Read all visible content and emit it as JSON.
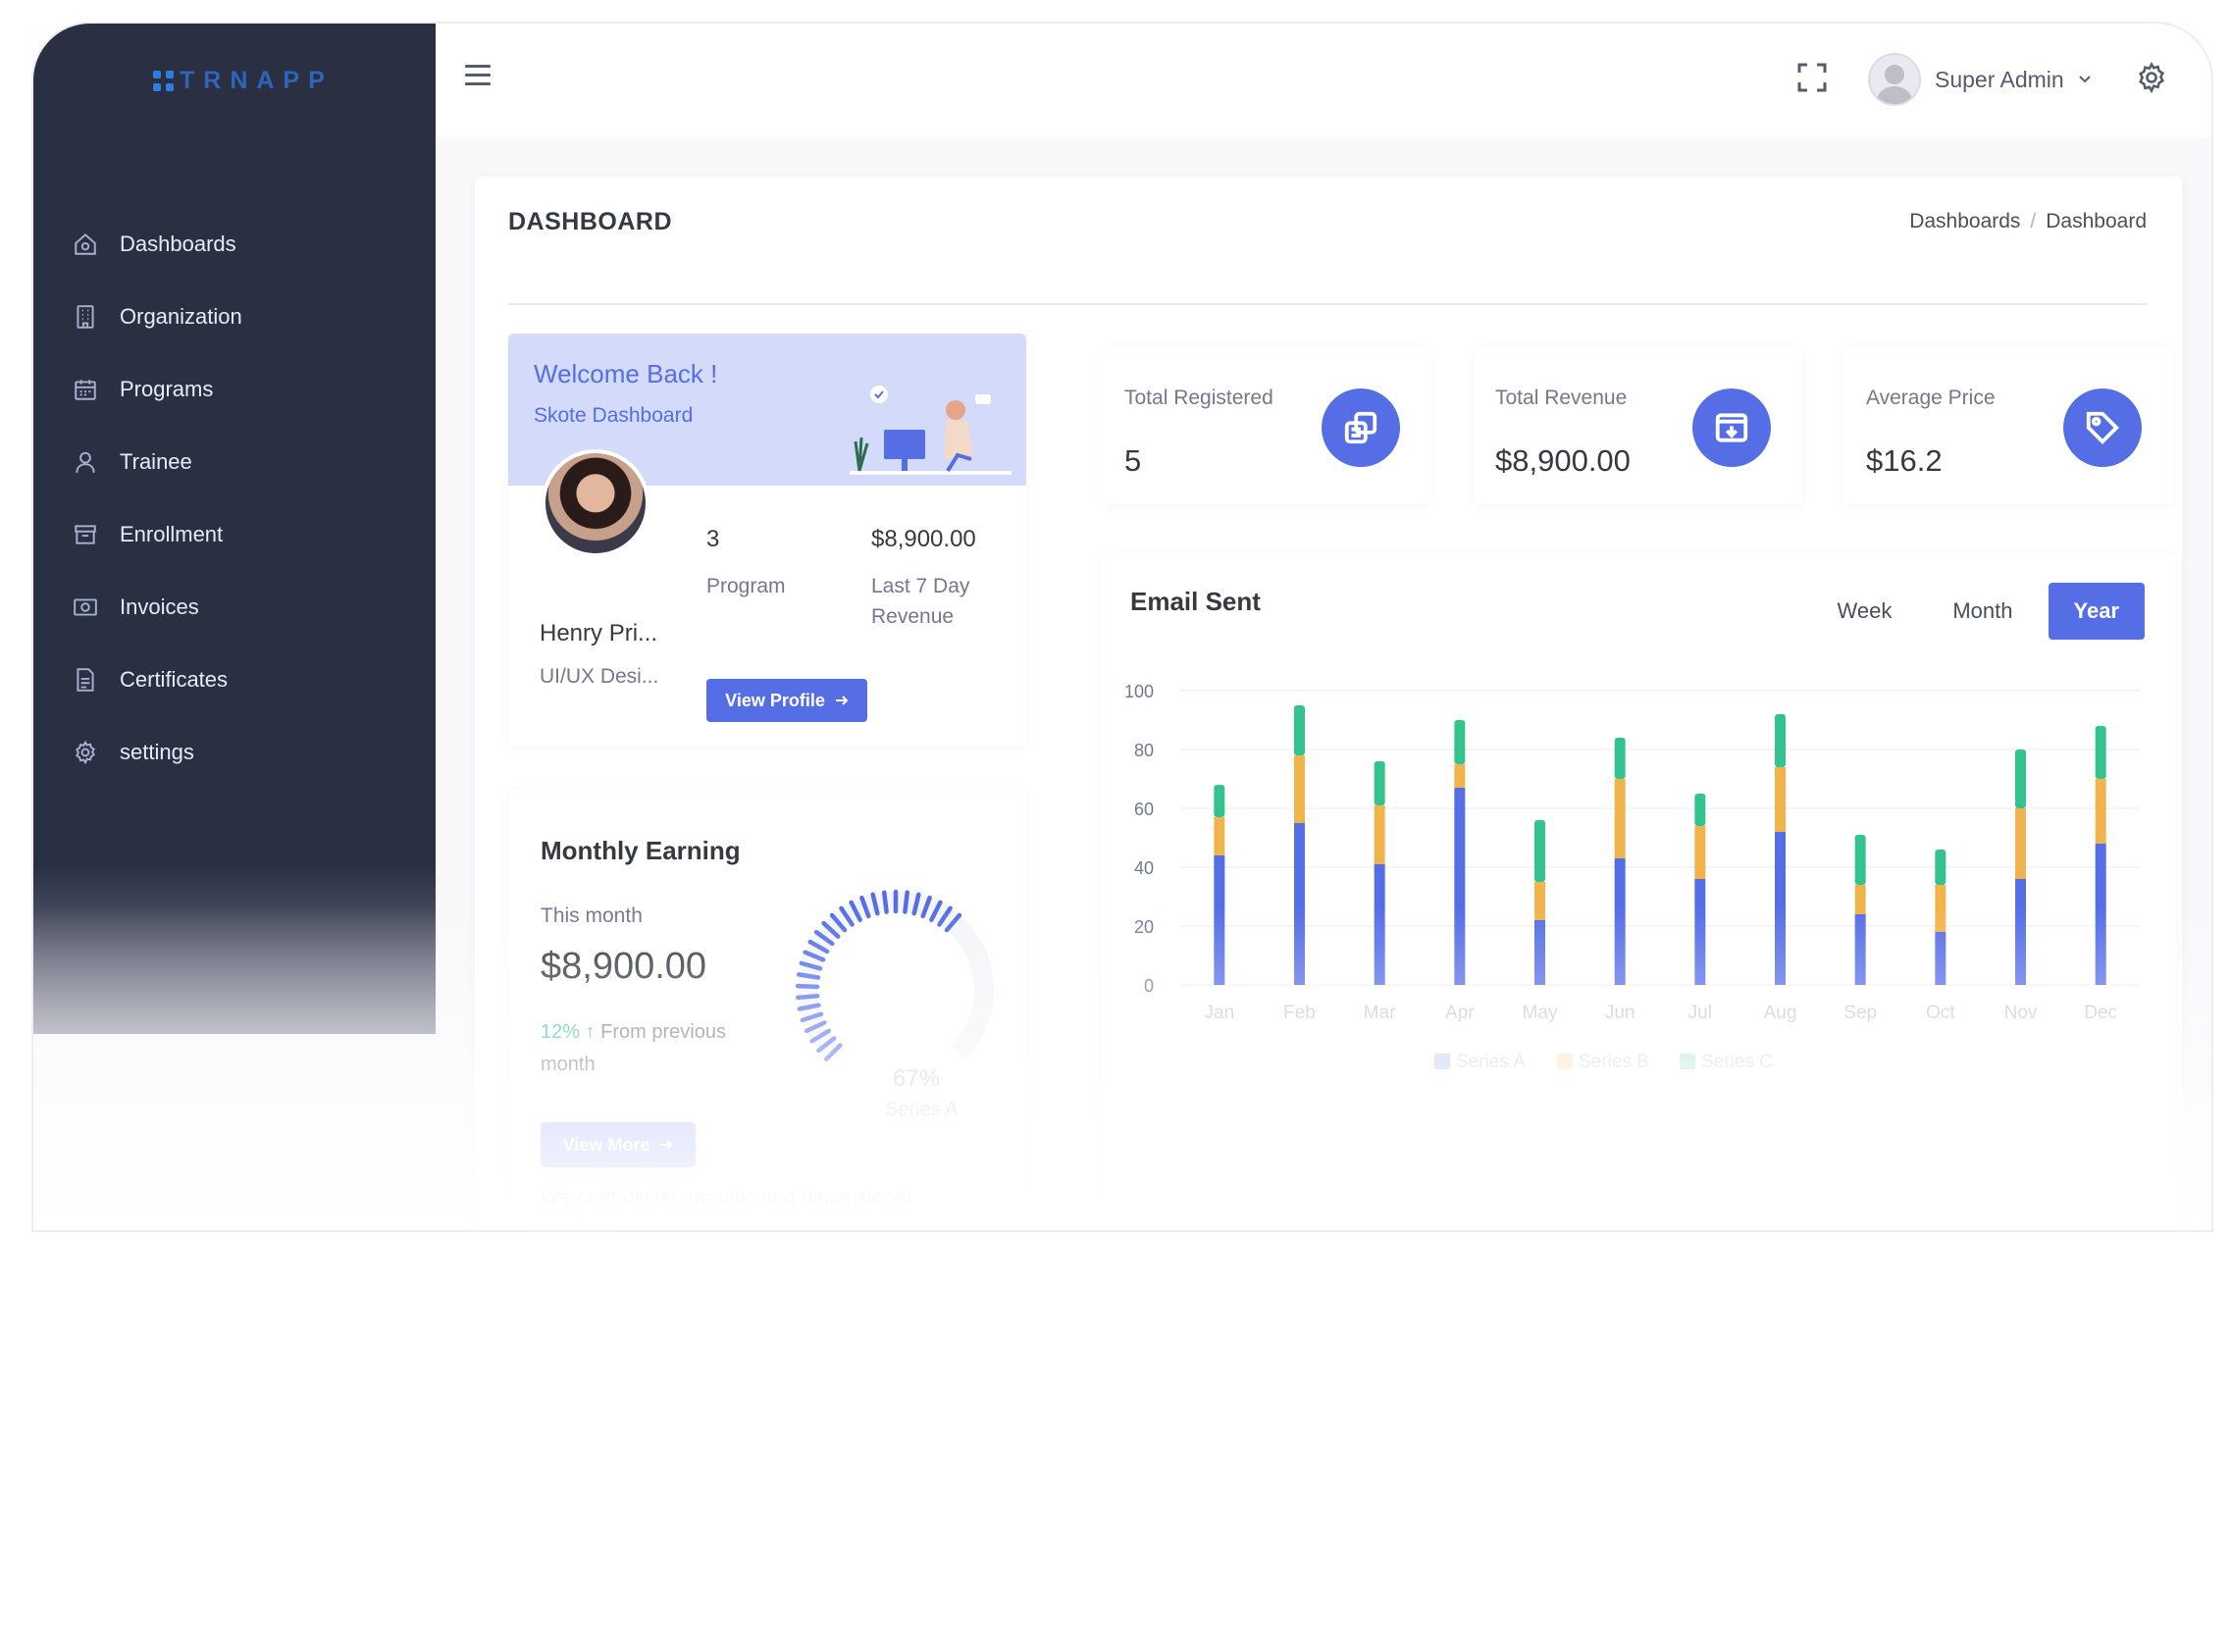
{
  "logo": {
    "text": "TRNAPP"
  },
  "sidebar": {
    "items": [
      {
        "label": "Dashboards",
        "icon": "home-icon"
      },
      {
        "label": "Organization",
        "icon": "building-icon"
      },
      {
        "label": "Programs",
        "icon": "calendar-icon"
      },
      {
        "label": "Trainee",
        "icon": "user-icon"
      },
      {
        "label": "Enrollment",
        "icon": "archive-icon"
      },
      {
        "label": "Invoices",
        "icon": "receipt-icon"
      },
      {
        "label": "Certificates",
        "icon": "document-icon"
      },
      {
        "label": "settings",
        "icon": "gear-icon"
      }
    ]
  },
  "topbar": {
    "user_name": "Super Admin"
  },
  "page": {
    "title": "DASHBOARD",
    "breadcrumb": [
      "Dashboards",
      "/",
      "Dashboard"
    ]
  },
  "welcome": {
    "title": "Welcome Back !",
    "subtitle": "Skote Dashboard",
    "name": "Henry Pri...",
    "role": "UI/UX Desi...",
    "programs_value": "3",
    "programs_label": "Program",
    "revenue_value": "$8,900.00",
    "revenue_label": "Last 7 Day Revenue",
    "button": "View Profile"
  },
  "stats": [
    {
      "label": "Total Registered",
      "value": "5",
      "icon": "copy-icon"
    },
    {
      "label": "Total Revenue",
      "value": "$8,900.00",
      "icon": "archive-download-icon"
    },
    {
      "label": "Average Price",
      "value": "$16.2",
      "icon": "price-tag-icon"
    }
  ],
  "monthly": {
    "title": "Monthly Earning",
    "this_month": "This month",
    "value": "$8,900.00",
    "pct": "12%",
    "pct_text": "From previous month",
    "button": "View More",
    "gauge_value": 67,
    "gauge_label": "67%",
    "gauge_series": "Series A",
    "description": "We craft digital, graphic and dimensional thinking."
  },
  "email_chart": {
    "title": "Email Sent",
    "tabs": [
      "Week",
      "Month",
      "Year"
    ],
    "active_tab": "Year"
  },
  "colors": {
    "primary": "#556ee6",
    "series_a": "#556ee6",
    "series_b": "#f1b44c",
    "series_c": "#34c38f",
    "sidebar": "#2a3042"
  },
  "chart_data": {
    "type": "bar",
    "stacked": true,
    "categories": [
      "Jan",
      "Feb",
      "Mar",
      "Apr",
      "May",
      "Jun",
      "Jul",
      "Aug",
      "Sep",
      "Oct",
      "Nov",
      "Dec"
    ],
    "series": [
      {
        "name": "Series A",
        "values": [
          44,
          55,
          41,
          67,
          22,
          43,
          36,
          52,
          24,
          18,
          36,
          48
        ]
      },
      {
        "name": "Series B",
        "values": [
          13,
          23,
          20,
          8,
          13,
          27,
          18,
          22,
          10,
          16,
          24,
          22
        ]
      },
      {
        "name": "Series C",
        "values": [
          11,
          17,
          15,
          15,
          21,
          14,
          11,
          18,
          17,
          12,
          20,
          18
        ]
      }
    ],
    "ylim": [
      0,
      100
    ],
    "yticks": [
      0,
      20,
      40,
      60,
      80,
      100
    ],
    "grid": true,
    "legend": "bottom"
  }
}
